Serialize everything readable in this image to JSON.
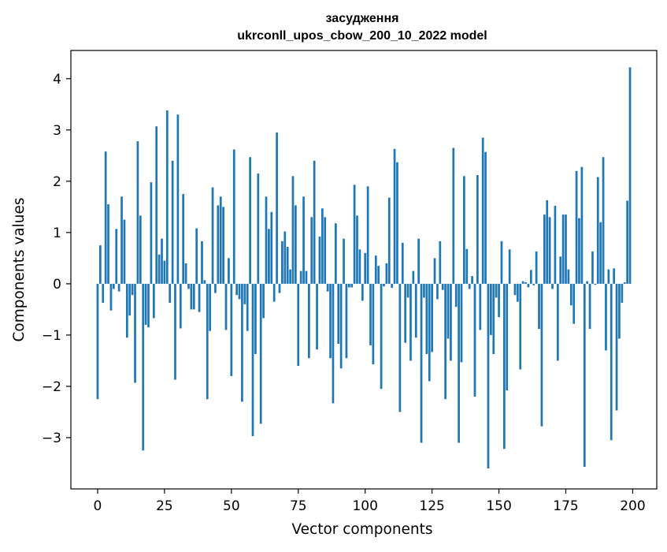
{
  "chart_data": {
    "type": "bar",
    "title_line1": "засудження",
    "title_line2": "ukrconll_upos_cbow_200_10_2022 model",
    "xlabel": "Vector components",
    "ylabel": "Components values",
    "xlim": [
      -10,
      209
    ],
    "ylim": [
      -4.0,
      4.55
    ],
    "xticks": [
      0,
      25,
      50,
      75,
      100,
      125,
      150,
      175,
      200
    ],
    "xtick_labels": [
      "0",
      "25",
      "50",
      "75",
      "100",
      "125",
      "150",
      "175",
      "200"
    ],
    "yticks": [
      -3,
      -2,
      -1,
      0,
      1,
      2,
      3,
      4
    ],
    "ytick_labels": [
      "−3",
      "−2",
      "−1",
      "0",
      "1",
      "2",
      "3",
      "4"
    ],
    "bar_color": "#1f77b4",
    "grid": false,
    "x": [
      0,
      1,
      2,
      3,
      4,
      5,
      6,
      7,
      8,
      9,
      10,
      11,
      12,
      13,
      14,
      15,
      16,
      17,
      18,
      19,
      20,
      21,
      22,
      23,
      24,
      25,
      26,
      27,
      28,
      29,
      30,
      31,
      32,
      33,
      34,
      35,
      36,
      37,
      38,
      39,
      40,
      41,
      42,
      43,
      44,
      45,
      46,
      47,
      48,
      49,
      50,
      51,
      52,
      53,
      54,
      55,
      56,
      57,
      58,
      59,
      60,
      61,
      62,
      63,
      64,
      65,
      66,
      67,
      68,
      69,
      70,
      71,
      72,
      73,
      74,
      75,
      76,
      77,
      78,
      79,
      80,
      81,
      82,
      83,
      84,
      85,
      86,
      87,
      88,
      89,
      90,
      91,
      92,
      93,
      94,
      95,
      96,
      97,
      98,
      99,
      100,
      101,
      102,
      103,
      104,
      105,
      106,
      107,
      108,
      109,
      110,
      111,
      112,
      113,
      114,
      115,
      116,
      117,
      118,
      119,
      120,
      121,
      122,
      123,
      124,
      125,
      126,
      127,
      128,
      129,
      130,
      131,
      132,
      133,
      134,
      135,
      136,
      137,
      138,
      139,
      140,
      141,
      142,
      143,
      144,
      145,
      146,
      147,
      148,
      149,
      150,
      151,
      152,
      153,
      154,
      155,
      156,
      157,
      158,
      159,
      160,
      161,
      162,
      163,
      164,
      165,
      166,
      167,
      168,
      169,
      170,
      171,
      172,
      173,
      174,
      175,
      176,
      177,
      178,
      179,
      180,
      181,
      182,
      183,
      184,
      185,
      186,
      187,
      188,
      189,
      190,
      191,
      192,
      193,
      194,
      195,
      196,
      197,
      198,
      199
    ],
    "values": [
      -2.25,
      0.75,
      -0.37,
      2.58,
      1.55,
      -0.52,
      -0.1,
      1.07,
      -0.15,
      1.7,
      1.25,
      -1.05,
      -0.62,
      -0.22,
      -1.93,
      2.78,
      1.33,
      -3.25,
      -0.8,
      -0.85,
      1.98,
      -0.67,
      3.07,
      0.57,
      0.88,
      0.45,
      3.38,
      -0.37,
      2.4,
      -1.87,
      3.3,
      -0.87,
      1.75,
      0.4,
      -0.1,
      -0.5,
      -0.5,
      1.08,
      -0.55,
      0.83,
      0.07,
      -2.25,
      -0.92,
      1.88,
      -0.18,
      1.53,
      1.7,
      1.5,
      -0.9,
      0.5,
      -1.8,
      2.62,
      -0.22,
      -0.3,
      -2.3,
      -0.4,
      -0.92,
      2.47,
      -2.97,
      -1.37,
      2.15,
      -2.73,
      -0.67,
      1.7,
      1.07,
      1.4,
      -0.35,
      2.95,
      -0.18,
      0.83,
      1.02,
      0.72,
      0.28,
      2.1,
      1.53,
      -1.6,
      0.25,
      1.7,
      0.25,
      -1.45,
      1.3,
      2.4,
      -1.28,
      0.92,
      1.47,
      1.3,
      -0.15,
      -1.45,
      -2.33,
      1.18,
      -1.17,
      -1.65,
      0.88,
      -1.45,
      -0.07,
      -0.07,
      1.93,
      1.33,
      0.67,
      -0.33,
      0.6,
      1.9,
      -1.2,
      -1.57,
      0.55,
      0.35,
      -2.05,
      -0.05,
      0.4,
      1.68,
      -0.08,
      2.63,
      2.37,
      -2.5,
      0.8,
      -1.15,
      -0.27,
      -1.5,
      0.25,
      -1.05,
      0.88,
      -3.1,
      -0.27,
      -1.37,
      -1.9,
      -1.33,
      0.5,
      -0.3,
      0.83,
      -0.12,
      -2.25,
      -1.07,
      -1.5,
      2.65,
      -0.45,
      -3.1,
      -1.53,
      2.1,
      0.68,
      -0.1,
      0.15,
      -2.2,
      2.12,
      -0.9,
      2.85,
      2.57,
      -3.6,
      -1.0,
      -1.37,
      -0.27,
      -0.65,
      0.83,
      -3.22,
      -2.08,
      0.67,
      0.0,
      -0.22,
      -0.35,
      -1.67,
      0.05,
      0.03,
      -0.07,
      0.27,
      -0.03,
      0.63,
      -0.88,
      -2.78,
      1.35,
      1.63,
      1.3,
      -0.1,
      1.52,
      -1.5,
      0.53,
      1.35,
      1.35,
      0.28,
      -0.42,
      -0.78,
      2.2,
      1.28,
      2.28,
      -3.57,
      0.05,
      -0.88,
      0.63,
      -0.02,
      2.08,
      1.2,
      2.47,
      -1.3,
      0.28,
      -3.05,
      0.3,
      -2.47,
      -1.07,
      -0.37,
      0.03,
      1.62,
      4.22
    ]
  }
}
